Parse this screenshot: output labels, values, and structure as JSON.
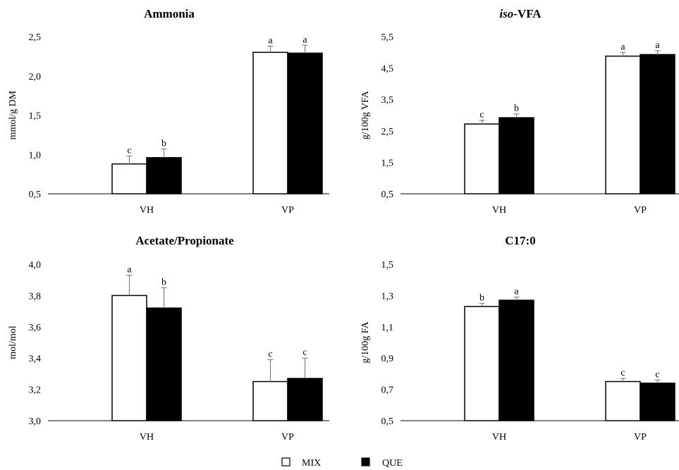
{
  "chart_data": [
    {
      "type": "bar",
      "title": "Ammonia",
      "title_italic_prefix": "",
      "ylabel": "mmol/g DM",
      "categories": [
        "VH",
        "VP"
      ],
      "ylim": [
        0.5,
        2.5
      ],
      "yticks": [
        "0,5",
        "1,0",
        "1,5",
        "2,0",
        "2,5"
      ],
      "ytick_values": [
        0.5,
        1.0,
        1.5,
        2.0,
        2.5
      ],
      "series": [
        {
          "name": "MIX",
          "values": [
            0.88,
            2.3
          ],
          "errors": [
            0.1,
            0.08
          ],
          "letters": [
            "c",
            "a"
          ]
        },
        {
          "name": "QUE",
          "values": [
            0.96,
            2.29
          ],
          "errors": [
            0.11,
            0.1
          ],
          "letters": [
            "b",
            "a"
          ]
        }
      ]
    },
    {
      "type": "bar",
      "title": "-VFA",
      "title_italic_prefix": "iso",
      "ylabel": "g/100g VFA",
      "categories": [
        "VH",
        "VP"
      ],
      "ylim": [
        0.5,
        5.5
      ],
      "yticks": [
        "0,5",
        "1,5",
        "2,5",
        "3,5",
        "4,5",
        "5,5"
      ],
      "ytick_values": [
        0.5,
        1.5,
        2.5,
        3.5,
        4.5,
        5.5
      ],
      "series": [
        {
          "name": "MIX",
          "values": [
            2.72,
            4.88
          ],
          "errors": [
            0.12,
            0.12
          ],
          "letters": [
            "c",
            "a"
          ]
        },
        {
          "name": "QUE",
          "values": [
            2.92,
            4.93
          ],
          "errors": [
            0.12,
            0.12
          ],
          "letters": [
            "b",
            "a"
          ]
        }
      ]
    },
    {
      "type": "bar",
      "title": "Acetate/Propionate",
      "title_italic_prefix": "",
      "ylabel": "mol/mol",
      "categories": [
        "VH",
        "VP"
      ],
      "ylim": [
        3.0,
        4.0
      ],
      "yticks": [
        "3,0",
        "3,2",
        "3,4",
        "3,6",
        "3,8",
        "4,0"
      ],
      "ytick_values": [
        3.0,
        3.2,
        3.4,
        3.6,
        3.8,
        4.0
      ],
      "series": [
        {
          "name": "MIX",
          "values": [
            3.8,
            3.25
          ],
          "errors": [
            0.13,
            0.14
          ],
          "letters": [
            "a",
            "c"
          ]
        },
        {
          "name": "QUE",
          "values": [
            3.72,
            3.27
          ],
          "errors": [
            0.13,
            0.13
          ],
          "letters": [
            "b",
            "c"
          ]
        }
      ]
    },
    {
      "type": "bar",
      "title": "C17:0",
      "title_italic_prefix": "",
      "ylabel": "g/100g FA",
      "categories": [
        "VH",
        "VP"
      ],
      "ylim": [
        0.5,
        1.5
      ],
      "yticks": [
        "0,5",
        "0,7",
        "0,9",
        "1,1",
        "1,3",
        "1,5"
      ],
      "ytick_values": [
        0.5,
        0.7,
        0.9,
        1.1,
        1.3,
        1.5
      ],
      "series": [
        {
          "name": "MIX",
          "values": [
            1.23,
            0.75
          ],
          "errors": [
            0.02,
            0.02
          ],
          "letters": [
            "b",
            "c"
          ]
        },
        {
          "name": "QUE",
          "values": [
            1.27,
            0.74
          ],
          "errors": [
            0.02,
            0.02
          ],
          "letters": [
            "a",
            "c"
          ]
        }
      ]
    }
  ],
  "legend": {
    "items": [
      {
        "label": "MIX",
        "color": "#ffffff"
      },
      {
        "label": "QUE",
        "color": "#000000"
      }
    ]
  },
  "colors": {
    "mix_fill": "#ffffff",
    "que_fill": "#000000",
    "axis": "#000000",
    "error_bar": "#808080"
  }
}
